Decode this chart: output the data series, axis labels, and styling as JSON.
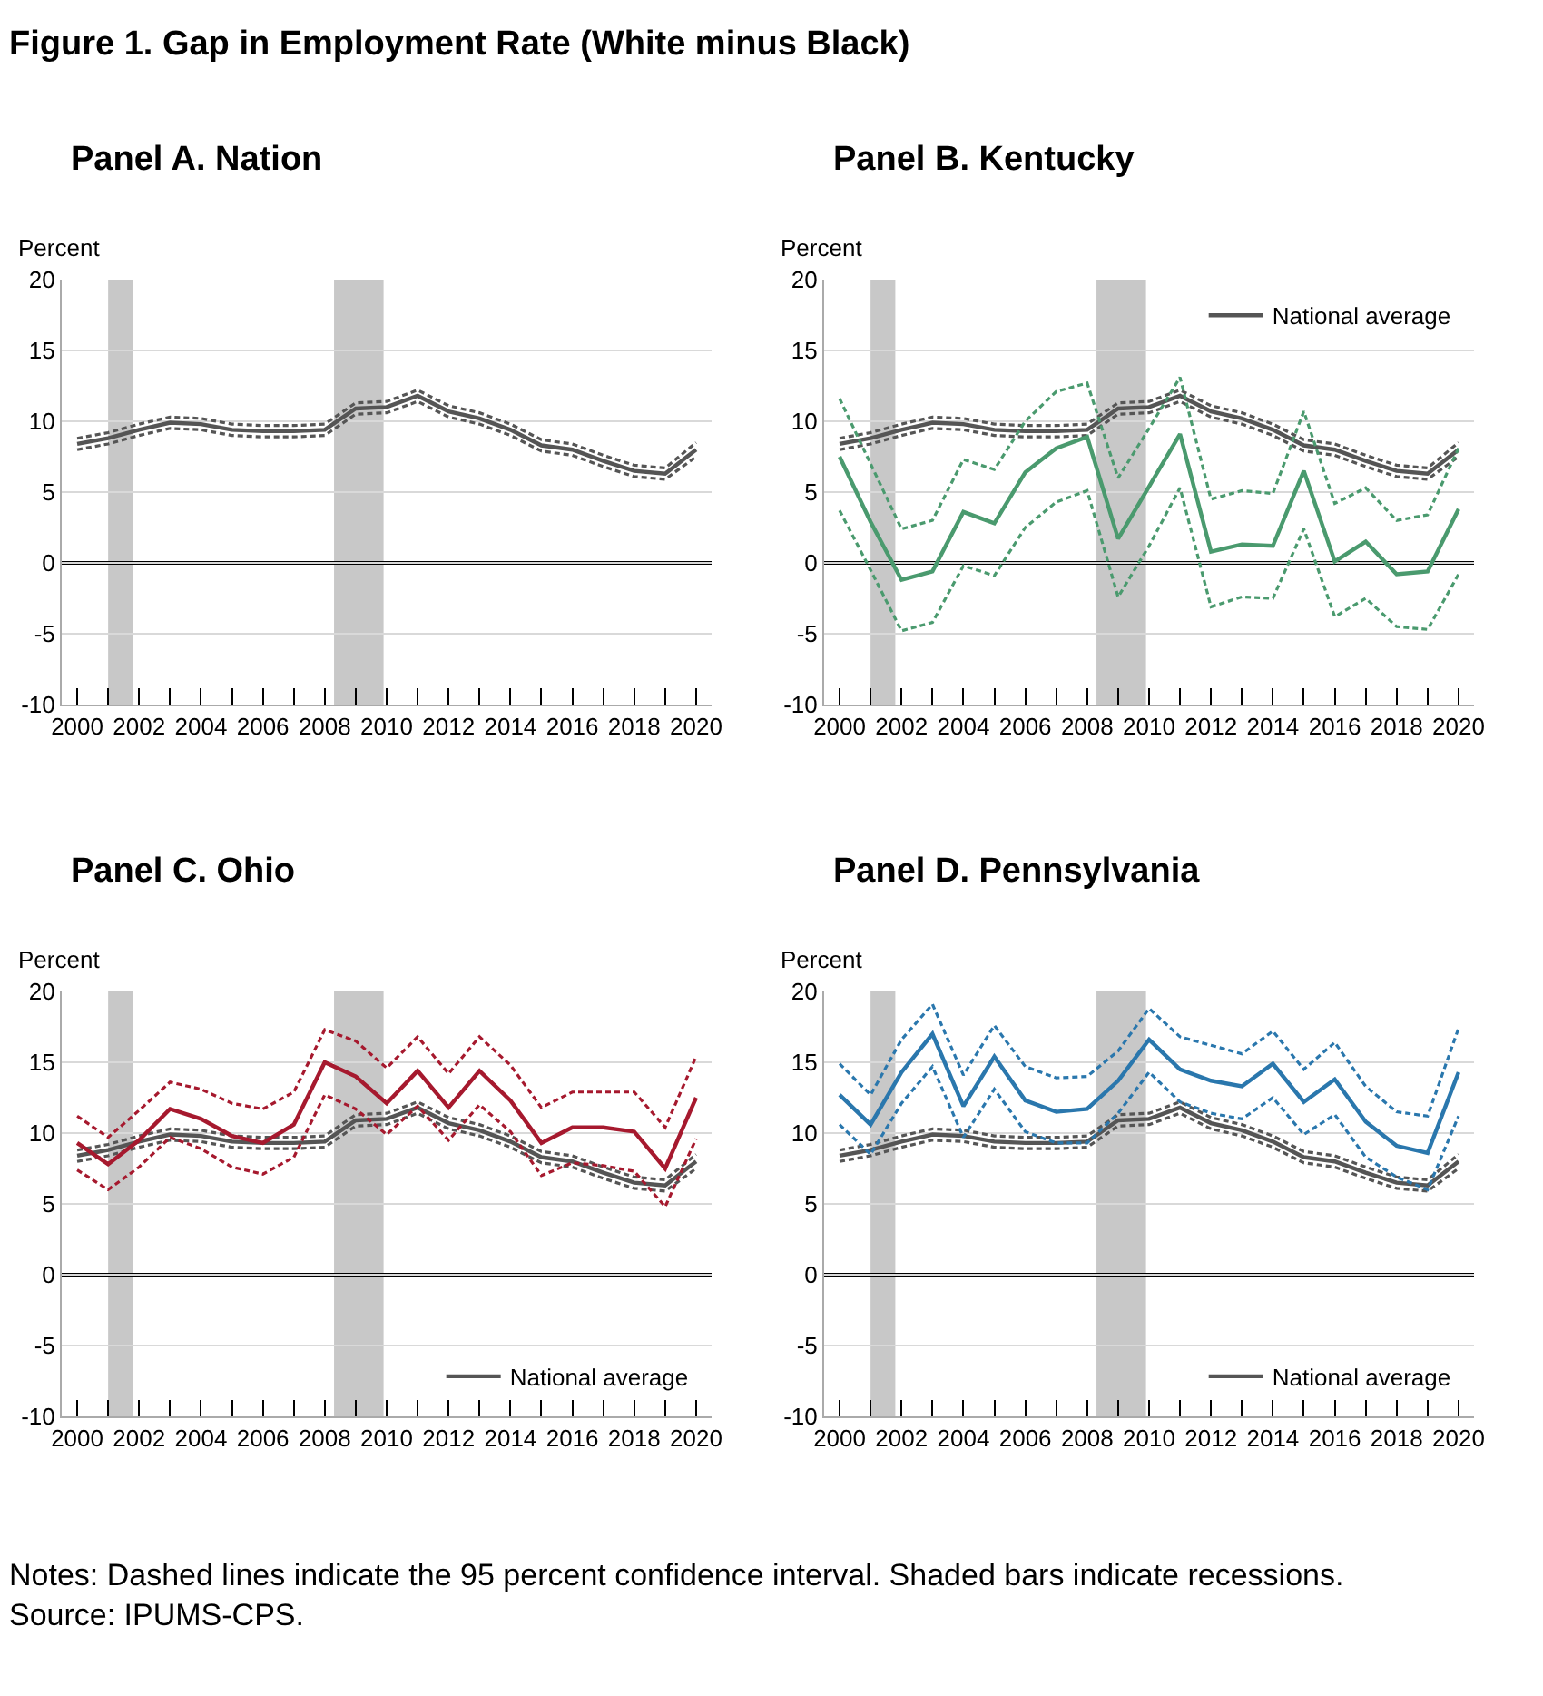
{
  "chart_data": [
    {
      "type": "other",
      "title": "Figure 1. Gap in Employment Rate (White minus Black)"
    },
    {
      "type": "line",
      "title": "Panel A. Nation",
      "ylabel": "Percent",
      "x": [
        2000,
        2001,
        2002,
        2003,
        2004,
        2005,
        2006,
        2007,
        2008,
        2009,
        2010,
        2011,
        2012,
        2013,
        2014,
        2015,
        2016,
        2017,
        2018,
        2019,
        2020
      ],
      "series": [
        {
          "color": "#555555",
          "line_style": "solid",
          "values": [
            8.4,
            8.8,
            9.4,
            9.9,
            9.8,
            9.4,
            9.3,
            9.3,
            9.4,
            10.9,
            11.0,
            11.8,
            10.7,
            10.2,
            9.4,
            8.3,
            8.0,
            7.2,
            6.5,
            6.3,
            8.0
          ]
        },
        {
          "color": "#555555",
          "line_style": "dashed",
          "values": [
            8.8,
            9.2,
            9.8,
            10.3,
            10.2,
            9.8,
            9.7,
            9.7,
            9.8,
            11.3,
            11.4,
            12.2,
            11.1,
            10.6,
            9.8,
            8.7,
            8.4,
            7.6,
            6.9,
            6.7,
            8.5
          ]
        },
        {
          "color": "#555555",
          "line_style": "dashed",
          "values": [
            8.0,
            8.4,
            9.0,
            9.5,
            9.4,
            9.0,
            8.9,
            8.9,
            9.0,
            10.5,
            10.6,
            11.4,
            10.3,
            9.8,
            9.0,
            7.9,
            7.6,
            6.8,
            6.1,
            5.9,
            7.5
          ]
        }
      ],
      "xlim": [
        1999.5,
        2020.5
      ],
      "ylim": [
        -10,
        20
      ],
      "yticks": [
        -10,
        -5,
        0,
        5,
        10,
        15,
        20
      ],
      "xticks": [
        2000,
        {
          "value": 2001,
          "label": null
        },
        2002,
        {
          "value": 2003,
          "label": null
        },
        2004,
        {
          "value": 2005,
          "label": null
        },
        2006,
        {
          "value": 2007,
          "label": null
        },
        2008,
        {
          "value": 2009,
          "label": null
        },
        2010,
        {
          "value": 2011,
          "label": null
        },
        2012,
        {
          "value": 2013,
          "label": null
        },
        2014,
        {
          "value": 2015,
          "label": null
        },
        2016,
        {
          "value": 2017,
          "label": null
        },
        2018,
        {
          "value": 2019,
          "label": null
        },
        2020
      ],
      "bands": [
        {
          "axis": "x",
          "from": 2001.0,
          "to": 2001.8,
          "color": "#c8c8c8"
        },
        {
          "axis": "x",
          "from": 2008.3,
          "to": 2009.9,
          "color": "#c8c8c8"
        }
      ],
      "ref_lines": [
        {
          "axis": "y",
          "value": 0,
          "color": "#000000"
        }
      ],
      "grid": "y",
      "legend": false
    },
    {
      "type": "line",
      "title": "Panel B. Kentucky",
      "ylabel": "Percent",
      "x": [
        2000,
        2001,
        2002,
        2003,
        2004,
        2005,
        2006,
        2007,
        2008,
        2009,
        2010,
        2011,
        2012,
        2013,
        2014,
        2015,
        2016,
        2017,
        2018,
        2019,
        2020
      ],
      "series": [
        {
          "name": "National average",
          "color": "#555555",
          "line_style": "solid",
          "values": [
            8.4,
            8.8,
            9.4,
            9.9,
            9.8,
            9.4,
            9.3,
            9.3,
            9.4,
            10.9,
            11.0,
            11.8,
            10.7,
            10.2,
            9.4,
            8.3,
            8.0,
            7.2,
            6.5,
            6.3,
            8.0
          ]
        },
        {
          "color": "#555555",
          "line_style": "dashed",
          "values": [
            8.8,
            9.2,
            9.8,
            10.3,
            10.2,
            9.8,
            9.7,
            9.7,
            9.8,
            11.3,
            11.4,
            12.2,
            11.1,
            10.6,
            9.8,
            8.7,
            8.4,
            7.6,
            6.9,
            6.7,
            8.5
          ]
        },
        {
          "color": "#555555",
          "line_style": "dashed",
          "values": [
            8.0,
            8.4,
            9.0,
            9.5,
            9.4,
            9.0,
            8.9,
            8.9,
            9.0,
            10.5,
            10.6,
            11.4,
            10.3,
            9.8,
            9.0,
            7.9,
            7.6,
            6.8,
            6.1,
            5.9,
            7.5
          ]
        },
        {
          "color": "#4a9a6e",
          "line_style": "solid",
          "values": [
            7.5,
            2.9,
            -1.2,
            -0.6,
            3.6,
            2.8,
            6.4,
            8.1,
            8.9,
            1.7,
            5.4,
            9.1,
            0.8,
            1.3,
            1.2,
            6.5,
            0.1,
            1.5,
            -0.8,
            -0.6,
            3.8
          ]
        },
        {
          "color": "#4a9a6e",
          "line_style": "dashed",
          "values": [
            11.6,
            7.0,
            2.4,
            3.0,
            7.3,
            6.6,
            10.0,
            12.1,
            12.7,
            6.0,
            9.5,
            13.1,
            4.5,
            5.1,
            4.9,
            10.7,
            4.2,
            5.3,
            3.0,
            3.4,
            8.1
          ]
        },
        {
          "color": "#4a9a6e",
          "line_style": "dashed",
          "values": [
            3.7,
            -0.5,
            -4.8,
            -4.2,
            -0.2,
            -0.9,
            2.5,
            4.3,
            5.1,
            -2.4,
            1.2,
            5.3,
            -3.1,
            -2.4,
            -2.5,
            2.4,
            -3.8,
            -2.5,
            -4.5,
            -4.7,
            -0.8
          ]
        }
      ],
      "xlim": [
        1999.5,
        2020.5
      ],
      "ylim": [
        -10,
        20
      ],
      "yticks": [
        -10,
        -5,
        0,
        5,
        10,
        15,
        20
      ],
      "xticks": [
        2000,
        {
          "value": 2001,
          "label": null
        },
        2002,
        {
          "value": 2003,
          "label": null
        },
        2004,
        {
          "value": 2005,
          "label": null
        },
        2006,
        {
          "value": 2007,
          "label": null
        },
        2008,
        {
          "value": 2009,
          "label": null
        },
        2010,
        {
          "value": 2011,
          "label": null
        },
        2012,
        {
          "value": 2013,
          "label": null
        },
        2014,
        {
          "value": 2015,
          "label": null
        },
        2016,
        {
          "value": 2017,
          "label": null
        },
        2018,
        {
          "value": 2019,
          "label": null
        },
        2020
      ],
      "bands": [
        {
          "axis": "x",
          "from": 2001.0,
          "to": 2001.8,
          "color": "#c8c8c8"
        },
        {
          "axis": "x",
          "from": 2008.3,
          "to": 2009.9,
          "color": "#c8c8c8"
        }
      ],
      "ref_lines": [
        {
          "axis": "y",
          "value": 0,
          "color": "#000000"
        }
      ],
      "grid": "y",
      "legend": "top right"
    },
    {
      "type": "line",
      "title": "Panel C. Ohio",
      "ylabel": "Percent",
      "x": [
        2000,
        2001,
        2002,
        2003,
        2004,
        2005,
        2006,
        2007,
        2008,
        2009,
        2010,
        2011,
        2012,
        2013,
        2014,
        2015,
        2016,
        2017,
        2018,
        2019,
        2020
      ],
      "series": [
        {
          "name": "National average",
          "color": "#555555",
          "line_style": "solid",
          "values": [
            8.4,
            8.8,
            9.4,
            9.9,
            9.8,
            9.4,
            9.3,
            9.3,
            9.4,
            10.9,
            11.0,
            11.8,
            10.7,
            10.2,
            9.4,
            8.3,
            8.0,
            7.2,
            6.5,
            6.3,
            8.0
          ]
        },
        {
          "color": "#555555",
          "line_style": "dashed",
          "values": [
            8.8,
            9.2,
            9.8,
            10.3,
            10.2,
            9.8,
            9.7,
            9.7,
            9.8,
            11.3,
            11.4,
            12.2,
            11.1,
            10.6,
            9.8,
            8.7,
            8.4,
            7.6,
            6.9,
            6.7,
            8.5
          ]
        },
        {
          "color": "#555555",
          "line_style": "dashed",
          "values": [
            8.0,
            8.4,
            9.0,
            9.5,
            9.4,
            9.0,
            8.9,
            8.9,
            9.0,
            10.5,
            10.6,
            11.4,
            10.3,
            9.8,
            9.0,
            7.9,
            7.6,
            6.8,
            6.1,
            5.9,
            7.5
          ]
        },
        {
          "color": "#a6192e",
          "line_style": "solid",
          "values": [
            9.3,
            7.8,
            9.5,
            11.7,
            11.0,
            9.8,
            9.3,
            10.6,
            15.0,
            14.0,
            12.1,
            14.4,
            11.8,
            14.4,
            12.3,
            9.3,
            10.4,
            10.4,
            10.1,
            7.5,
            12.5
          ]
        },
        {
          "color": "#a6192e",
          "line_style": "dashed",
          "values": [
            11.2,
            9.7,
            11.6,
            13.6,
            13.1,
            12.1,
            11.7,
            12.9,
            17.3,
            16.5,
            14.6,
            16.8,
            14.2,
            16.8,
            14.8,
            11.8,
            12.9,
            12.9,
            12.9,
            10.4,
            15.4
          ]
        },
        {
          "color": "#a6192e",
          "line_style": "dashed",
          "values": [
            7.4,
            6.0,
            7.6,
            9.7,
            8.9,
            7.6,
            7.1,
            8.3,
            12.7,
            11.7,
            9.9,
            11.9,
            9.5,
            12.0,
            10.1,
            7.0,
            7.9,
            7.7,
            7.3,
            4.8,
            9.6
          ]
        }
      ],
      "xlim": [
        1999.5,
        2020.5
      ],
      "ylim": [
        -10,
        20
      ],
      "yticks": [
        -10,
        -5,
        0,
        5,
        10,
        15,
        20
      ],
      "xticks": [
        2000,
        {
          "value": 2001,
          "label": null
        },
        2002,
        {
          "value": 2003,
          "label": null
        },
        2004,
        {
          "value": 2005,
          "label": null
        },
        2006,
        {
          "value": 2007,
          "label": null
        },
        2008,
        {
          "value": 2009,
          "label": null
        },
        2010,
        {
          "value": 2011,
          "label": null
        },
        2012,
        {
          "value": 2013,
          "label": null
        },
        2014,
        {
          "value": 2015,
          "label": null
        },
        2016,
        {
          "value": 2017,
          "label": null
        },
        2018,
        {
          "value": 2019,
          "label": null
        },
        2020
      ],
      "bands": [
        {
          "axis": "x",
          "from": 2001.0,
          "to": 2001.8,
          "color": "#c8c8c8"
        },
        {
          "axis": "x",
          "from": 2008.3,
          "to": 2009.9,
          "color": "#c8c8c8"
        }
      ],
      "ref_lines": [
        {
          "axis": "y",
          "value": 0,
          "color": "#000000"
        }
      ],
      "grid": "y",
      "legend": "bottom right"
    },
    {
      "type": "line",
      "title": "Panel D. Pennsylvania",
      "ylabel": "Percent",
      "x": [
        2000,
        2001,
        2002,
        2003,
        2004,
        2005,
        2006,
        2007,
        2008,
        2009,
        2010,
        2011,
        2012,
        2013,
        2014,
        2015,
        2016,
        2017,
        2018,
        2019,
        2020
      ],
      "series": [
        {
          "name": "National average",
          "color": "#555555",
          "line_style": "solid",
          "values": [
            8.4,
            8.8,
            9.4,
            9.9,
            9.8,
            9.4,
            9.3,
            9.3,
            9.4,
            10.9,
            11.0,
            11.8,
            10.7,
            10.2,
            9.4,
            8.3,
            8.0,
            7.2,
            6.5,
            6.3,
            8.0
          ]
        },
        {
          "color": "#555555",
          "line_style": "dashed",
          "values": [
            8.8,
            9.2,
            9.8,
            10.3,
            10.2,
            9.8,
            9.7,
            9.7,
            9.8,
            11.3,
            11.4,
            12.2,
            11.1,
            10.6,
            9.8,
            8.7,
            8.4,
            7.6,
            6.9,
            6.7,
            8.5
          ]
        },
        {
          "color": "#555555",
          "line_style": "dashed",
          "values": [
            8.0,
            8.4,
            9.0,
            9.5,
            9.4,
            9.0,
            8.9,
            8.9,
            9.0,
            10.5,
            10.6,
            11.4,
            10.3,
            9.8,
            9.0,
            7.9,
            7.6,
            6.8,
            6.1,
            5.9,
            7.5
          ]
        },
        {
          "color": "#2a77ad",
          "line_style": "solid",
          "values": [
            12.7,
            10.6,
            14.3,
            17.0,
            11.9,
            15.4,
            12.3,
            11.5,
            11.7,
            13.7,
            16.6,
            14.5,
            13.7,
            13.3,
            14.9,
            12.2,
            13.8,
            10.8,
            9.1,
            8.6,
            14.3
          ]
        },
        {
          "color": "#2a77ad",
          "line_style": "dashed",
          "values": [
            14.9,
            12.7,
            16.6,
            19.1,
            14.1,
            17.6,
            14.7,
            13.9,
            14.0,
            15.8,
            18.8,
            16.8,
            16.2,
            15.6,
            17.2,
            14.5,
            16.4,
            13.3,
            11.5,
            11.2,
            17.4
          ]
        },
        {
          "color": "#2a77ad",
          "line_style": "dashed",
          "values": [
            10.6,
            8.5,
            12.1,
            14.7,
            9.7,
            13.1,
            10.1,
            9.3,
            9.3,
            11.4,
            14.3,
            12.2,
            11.4,
            11.0,
            12.5,
            9.9,
            11.3,
            8.3,
            6.9,
            6.0,
            11.2
          ]
        }
      ],
      "xlim": [
        1999.5,
        2020.5
      ],
      "ylim": [
        -10,
        20
      ],
      "yticks": [
        -10,
        -5,
        0,
        5,
        10,
        15,
        20
      ],
      "xticks": [
        2000,
        {
          "value": 2001,
          "label": null
        },
        2002,
        {
          "value": 2003,
          "label": null
        },
        2004,
        {
          "value": 2005,
          "label": null
        },
        2006,
        {
          "value": 2007,
          "label": null
        },
        2008,
        {
          "value": 2009,
          "label": null
        },
        2010,
        {
          "value": 2011,
          "label": null
        },
        2012,
        {
          "value": 2013,
          "label": null
        },
        2014,
        {
          "value": 2015,
          "label": null
        },
        2016,
        {
          "value": 2017,
          "label": null
        },
        2018,
        {
          "value": 2019,
          "label": null
        },
        2020
      ],
      "bands": [
        {
          "axis": "x",
          "from": 2001.0,
          "to": 2001.8,
          "color": "#c8c8c8"
        },
        {
          "axis": "x",
          "from": 2008.3,
          "to": 2009.9,
          "color": "#c8c8c8"
        }
      ],
      "ref_lines": [
        {
          "axis": "y",
          "value": 0,
          "color": "#000000"
        }
      ],
      "grid": "y",
      "legend": "bottom right"
    },
    {
      "type": "other",
      "annotations": [
        "Notes: Dashed lines indicate the 95 percent confidence interval. Shaded bars indicate recessions.",
        "Source: IPUMS-CPS."
      ]
    }
  ]
}
